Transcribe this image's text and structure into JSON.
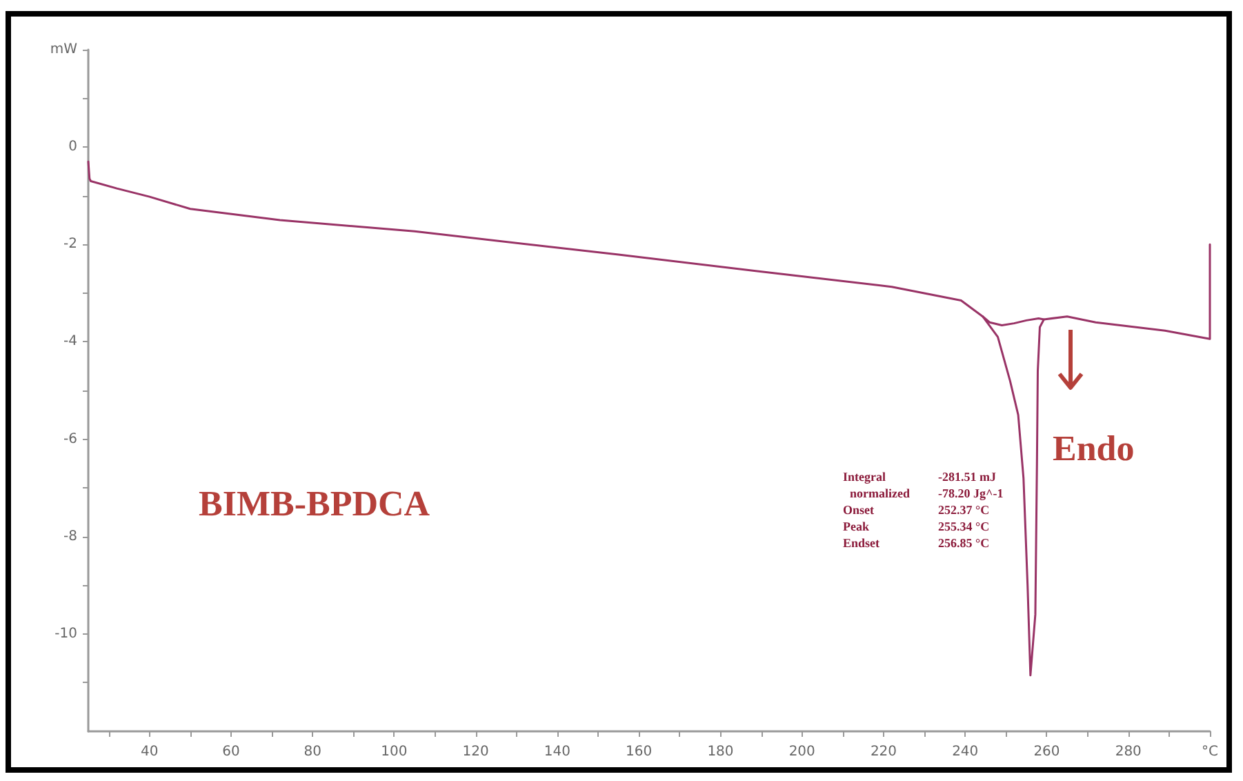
{
  "chart_data": {
    "type": "line",
    "marker": "none",
    "grid": false,
    "xlim": [
      25,
      300
    ],
    "ylim": [
      -12,
      2
    ],
    "xticks": [
      {
        "value": 30,
        "label": null
      },
      40,
      {
        "value": 50,
        "label": null
      },
      60,
      {
        "value": 70,
        "label": null
      },
      80,
      {
        "value": 90,
        "label": null
      },
      100,
      {
        "value": 110,
        "label": null
      },
      120,
      {
        "value": 130,
        "label": null
      },
      140,
      {
        "value": 150,
        "label": null
      },
      160,
      {
        "value": 170,
        "label": null
      },
      180,
      {
        "value": 190,
        "label": null
      },
      200,
      {
        "value": 210,
        "label": null
      },
      220,
      {
        "value": 230,
        "label": null
      },
      240,
      {
        "value": 250,
        "label": null
      },
      260,
      {
        "value": 270,
        "label": null
      },
      280,
      {
        "value": 290,
        "label": null
      },
      {
        "value": 300,
        "label": "°C"
      }
    ],
    "yticks": [
      {
        "value": -11,
        "label": null
      },
      -10,
      {
        "value": -9,
        "label": null
      },
      -8,
      {
        "value": -7,
        "label": null
      },
      -6,
      {
        "value": -5,
        "label": null
      },
      -4,
      {
        "value": -3,
        "label": null
      },
      -2,
      {
        "value": -1,
        "label": null
      },
      0,
      {
        "value": 1,
        "label": null
      },
      {
        "value": 2,
        "label": "mW"
      }
    ],
    "series": [
      {
        "color": "#993366",
        "x": [
          25,
          25.3,
          25.6,
          32,
          40,
          50,
          72,
          105,
          155,
          189,
          222,
          239,
          244.3,
          248,
          251,
          253,
          254.3,
          255.3,
          256,
          257.2,
          257.6,
          257.8,
          258.3,
          259.3,
          265,
          272,
          289,
          300,
          300
        ],
        "values": [
          -0.3,
          -0.65,
          -0.7,
          -0.85,
          -1.02,
          -1.27,
          -1.5,
          -1.73,
          -2.21,
          -2.55,
          -2.87,
          -3.15,
          -3.48,
          -3.9,
          -4.8,
          -5.5,
          -6.8,
          -9,
          -10.85,
          -9.6,
          -6.5,
          -4.6,
          -3.7,
          -3.54,
          -3.48,
          -3.6,
          -3.77,
          -3.94,
          -2.0
        ]
      },
      {
        "color": "#993366",
        "x": [
          244.3,
          246,
          249,
          252,
          255,
          258,
          259.3
        ],
        "values": [
          -3.48,
          -3.6,
          -3.66,
          -3.62,
          -3.56,
          -3.52,
          -3.54
        ]
      }
    ],
    "annotations": [
      "BIMB-BPDCA",
      "Endo",
      "Integral -281.51 mJ",
      "normalized -78.20 Jg^-1",
      "Onset 252.37 °C",
      "Peak 255.34 °C",
      "Endset 256.85 °C"
    ]
  }
}
